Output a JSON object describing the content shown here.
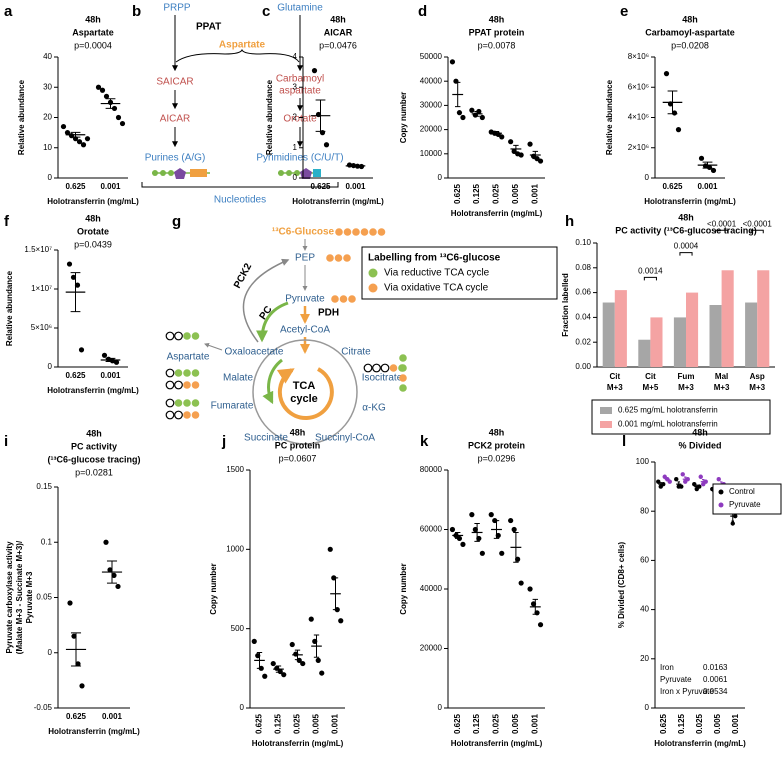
{
  "chart_data": [
    {
      "type": "dotplot",
      "label": "a",
      "title": "48h",
      "subtitle": "Aspartate",
      "annotation": "p=0.0004",
      "ylabel": "Relative abundance",
      "xlabel": "Holotransferrin (mg/mL)",
      "categories": [
        "0.625",
        "0.001"
      ],
      "points": [
        [
          17,
          15,
          14,
          13,
          12,
          11,
          13
        ],
        [
          30,
          29,
          27,
          25,
          23,
          20,
          18
        ]
      ],
      "means": [
        14.3,
        24.6
      ],
      "errors": [
        0.8,
        1.6
      ],
      "ylim": [
        0,
        40
      ],
      "yticks": [
        0,
        10,
        20,
        30,
        40
      ],
      "color": "#000000"
    },
    {
      "type": "dotplot",
      "label": "c",
      "title": "48h",
      "subtitle": "AICAR",
      "annotation": "p=0.0476",
      "ylabel": "Relative abundance",
      "xlabel": "Holotransferrin (mg/mL)",
      "categories": [
        "0.625",
        "0.001"
      ],
      "points": [
        [
          3.55,
          2.1,
          1.5,
          1.1
        ],
        [
          0.43,
          0.41,
          0.39,
          0.38
        ]
      ],
      "means": [
        2.06,
        0.4
      ],
      "errors": [
        0.52,
        0.01
      ],
      "ylim": [
        0,
        4
      ],
      "yticks": [
        0,
        1,
        2,
        3,
        4
      ],
      "color": "#000000"
    },
    {
      "type": "dotplot",
      "label": "d",
      "title": "48h",
      "subtitle": "PPAT protein",
      "annotation": "p=0.0078",
      "ylabel": "Copy number",
      "xlabel": "Holotransferrin (mg/mL)",
      "categories": [
        "0.625",
        "0.125",
        "0.025",
        "0.005",
        "0.001"
      ],
      "points": [
        [
          48000,
          40000,
          27000,
          25000
        ],
        [
          28000,
          26000,
          27500,
          25000
        ],
        [
          19000,
          18500,
          18000,
          17000
        ],
        [
          15000,
          11000,
          10000,
          9500
        ],
        [
          14000,
          9000,
          8000,
          7000
        ]
      ],
      "means": [
        34500,
        26500,
        18500,
        12000,
        9500
      ],
      "errors": [
        5000,
        1000,
        700,
        1500,
        1500
      ],
      "ylim": [
        0,
        50000
      ],
      "yticks": [
        0,
        10000,
        20000,
        30000,
        40000,
        50000
      ],
      "color": "#000000"
    },
    {
      "type": "dotplot",
      "label": "e",
      "title": "48h",
      "subtitle": "Carbamoyl-aspartate",
      "annotation": "p=0.0208",
      "ylabel": "Relative abundance",
      "xlabel": "Holotransferrin (mg/mL)",
      "categories": [
        "0.625",
        "0.001"
      ],
      "points": [
        [
          6900000,
          4900000,
          4300000,
          3200000
        ],
        [
          1300000,
          800000,
          700000,
          500000
        ]
      ],
      "means": [
        5000000,
        850000
      ],
      "errors": [
        750000,
        200000
      ],
      "ylim": [
        0,
        8000000
      ],
      "yticks": [
        0,
        {
          "value": 2000000,
          "label": "2×10⁶"
        },
        {
          "value": 4000000,
          "label": "4×10⁶"
        },
        {
          "value": 6000000,
          "label": "6×10⁶"
        },
        {
          "value": 8000000,
          "label": "8×10⁶"
        }
      ],
      "color": "#000000"
    },
    {
      "type": "dotplot",
      "label": "f",
      "title": "48h",
      "subtitle": "Orotate",
      "annotation": "p=0.0439",
      "ylabel": "Relative abundance",
      "xlabel": "Holotransferrin (mg/mL)",
      "categories": [
        "0.625",
        "0.001"
      ],
      "points": [
        [
          13200000,
          11500000,
          10500000,
          2200000
        ],
        [
          1500000,
          1000000,
          800000,
          600000
        ]
      ],
      "means": [
        9600000,
        900000
      ],
      "errors": [
        2500000,
        200000
      ],
      "ylim": [
        0,
        15000000
      ],
      "yticks": [
        0,
        {
          "value": 5000000,
          "label": "5×10⁶"
        },
        {
          "value": 10000000,
          "label": "1×10⁷"
        },
        {
          "value": 15000000,
          "label": "1.5×10⁷"
        }
      ],
      "color": "#000000"
    },
    {
      "type": "bar",
      "label": "h",
      "title": "48h",
      "subtitle": "PC activity (¹³C6-glucose tracing)",
      "ylabel": "Fraction labelled",
      "categories": [
        [
          "Cit",
          "M+3"
        ],
        [
          "Cit",
          "M+5"
        ],
        [
          "Fum",
          "M+3"
        ],
        [
          "Mal",
          "M+3"
        ],
        [
          "Asp",
          "M+3"
        ]
      ],
      "series": [
        {
          "name": "0.625 mg/mL holotransferrin",
          "color": "#a6a6a6",
          "values": [
            0.052,
            0.022,
            0.04,
            0.05,
            0.052
          ]
        },
        {
          "name": "0.001 mg/mL holotransferrin",
          "color": "#f4a3a3",
          "values": [
            0.062,
            0.04,
            0.06,
            0.078,
            0.078
          ]
        }
      ],
      "value_annotations": [
        null,
        "0.0014",
        "0.0004",
        "<0.0001",
        "<0.0001"
      ],
      "ylim": [
        0,
        0.1
      ],
      "yticks": [
        {
          "value": 0,
          "label": "0.00"
        },
        {
          "value": 0.02,
          "label": "0.02"
        },
        {
          "value": 0.04,
          "label": "0.04"
        },
        {
          "value": 0.06,
          "label": "0.06"
        },
        {
          "value": 0.08,
          "label": "0.08"
        },
        {
          "value": 0.1,
          "label": "0.10"
        }
      ]
    },
    {
      "type": "dotplot",
      "label": "i",
      "title": "48h",
      "subtitle": [
        "PC activity",
        "(¹³C6-glucose tracing)"
      ],
      "annotation": "p=0.0281",
      "ylabel": [
        "Pyruvate carboxylase activity",
        "(Malate M+3 - Succinate M+3)/",
        "Pyruvate M+3"
      ],
      "xlabel": "Holotransferrin (mg/mL)",
      "categories": [
        "0.625",
        "0.001"
      ],
      "points": [
        [
          0.045,
          0.015,
          -0.01,
          -0.03
        ],
        [
          0.1,
          0.075,
          0.07,
          0.06
        ]
      ],
      "means": [
        0.003,
        0.073
      ],
      "errors": [
        0.015,
        0.01
      ],
      "ylim": [
        -0.05,
        0.15
      ],
      "yticks": [
        -0.05,
        0,
        0.05,
        0.1,
        0.15
      ],
      "color": "#000000"
    },
    {
      "type": "dotplot",
      "label": "j",
      "title": "48h",
      "subtitle": "PC protein",
      "annotation": "p=0.0607",
      "ylabel": "Copy number",
      "xlabel": "Holotransferrin (mg/mL)",
      "categories": [
        "0.625",
        "0.125",
        "0.025",
        "0.005",
        "0.001"
      ],
      "points": [
        [
          420,
          330,
          250,
          200
        ],
        [
          280,
          250,
          230,
          210
        ],
        [
          400,
          340,
          300,
          280
        ],
        [
          560,
          420,
          300,
          220
        ],
        [
          1000,
          820,
          620,
          550
        ]
      ],
      "means": [
        300,
        245,
        335,
        390,
        720
      ],
      "errors": [
        50,
        20,
        30,
        70,
        100
      ],
      "ylim": [
        0,
        1500
      ],
      "yticks": [
        0,
        500,
        1000,
        1500
      ],
      "color": "#000000"
    },
    {
      "type": "dotplot",
      "label": "k",
      "title": "48h",
      "subtitle": "PCK2 protein",
      "annotation": "p=0.0296",
      "ylabel": "Copy number",
      "xlabel": "Holotransferrin (mg/mL)",
      "categories": [
        "0.625",
        "0.125",
        "0.025",
        "0.005",
        "0.001"
      ],
      "points": [
        [
          60000,
          58000,
          57000,
          55000
        ],
        [
          65000,
          60000,
          57000,
          52000
        ],
        [
          65000,
          63000,
          58000,
          52000
        ],
        [
          63000,
          60000,
          50000,
          42000
        ],
        [
          40000,
          35000,
          32000,
          28000
        ]
      ],
      "means": [
        58000,
        59000,
        60000,
        54000,
        34000
      ],
      "errors": [
        1000,
        3000,
        3000,
        5000,
        2500
      ],
      "ylim": [
        0,
        80000
      ],
      "yticks": [
        0,
        20000,
        40000,
        60000,
        80000
      ],
      "color": "#000000"
    },
    {
      "type": "dotplot",
      "label": "l",
      "title": "48h",
      "subtitle": "% Divided",
      "ylabel": "% Divided (CD8+ cells)",
      "xlabel": "Holotransferrin (mg/mL)",
      "categories": [
        "0.625",
        "0.125",
        "0.025",
        "0.005",
        "0.001"
      ],
      "series": [
        {
          "name": "Control",
          "color": "#000000",
          "points": [
            [
              92,
              90,
              91
            ],
            [
              93,
              90,
              90
            ],
            [
              91,
              89,
              90
            ],
            [
              89,
              87,
              88
            ],
            [
              82,
              75,
              78
            ]
          ],
          "values": [
            91,
            91,
            90,
            88,
            78
          ],
          "errors": [
            0.6,
            0.9,
            0.6,
            0.6,
            2
          ]
        },
        {
          "name": "Pyruvate",
          "color": "#8e3bbf",
          "points": [
            [
              94,
              93,
              92
            ],
            [
              95,
              92,
              93
            ],
            [
              94,
              91,
              92
            ],
            [
              93,
              90,
              91
            ],
            [
              90,
              86,
              88
            ]
          ],
          "values": [
            93,
            93,
            92,
            91,
            88
          ],
          "errors": [
            0.6,
            0.9,
            0.9,
            0.9,
            1.2
          ]
        }
      ],
      "stats": [
        {
          "term": "Iron",
          "p": "0.0163"
        },
        {
          "term": "Pyruvate",
          "p": "0.0061"
        },
        {
          "term": "Iron x Pyruvate",
          "p": "0.0534"
        }
      ],
      "ylim": [
        0,
        100
      ],
      "yticks": [
        0,
        20,
        40,
        60,
        80,
        100
      ]
    }
  ],
  "diagram_b": {
    "label": "b",
    "prpp": "PRPP",
    "glutamine": "Glutamine",
    "enzyme": "PPAT",
    "aspartate": "Aspartate",
    "saicar": "SAICAR",
    "carbamoyl_aspartate": [
      "Carbamoyl",
      "aspartate"
    ],
    "aicar": "AICAR",
    "orotate": "Orotate",
    "purines": "Purines (A/G)",
    "pyrimidines": "Pyrimidines (C/U/T)",
    "nucleotides": "Nucleotides"
  },
  "diagram_g": {
    "label": "g",
    "glucose": "¹³C6-Glucose",
    "pep": "PEP",
    "pyruvate": "Pyruvate",
    "acetyl_coa": "Acetyl-CoA",
    "pck2": "PCK2",
    "pc": "PC",
    "pdh": "PDH",
    "aspartate": "Aspartate",
    "oxaloacetate": "Oxaloacetate",
    "citrate": "Citrate",
    "isocitrate": "Isocitrate",
    "akg": "α-KG",
    "succinyl_coa": "Succinyl-CoA",
    "succinate": "Succinate",
    "fumarate": "Fumarate",
    "malate": "Malate",
    "cycle": [
      "TCA",
      "cycle"
    ],
    "legend": {
      "title": "Labelling from ¹³C6-glucose",
      "items": [
        "Via reductive TCA cycle",
        "Via oxidative TCA cycle"
      ]
    }
  }
}
